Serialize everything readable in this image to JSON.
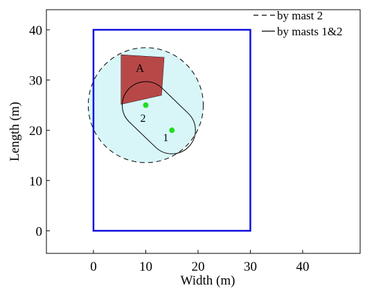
{
  "chart_data": {
    "type": "scatter",
    "xlabel": "Width (m)",
    "ylabel": "Length (m)",
    "xlim": [
      -9,
      51
    ],
    "ylim": [
      -4.5,
      44
    ],
    "xticks": [
      0,
      10,
      20,
      30,
      40
    ],
    "yticks": [
      0,
      10,
      20,
      30,
      40
    ],
    "grid": false,
    "legend_position": "top-right",
    "legend": [
      {
        "label": "by mast 2",
        "style": "dashed"
      },
      {
        "label": "by masts 1&2",
        "style": "solid"
      }
    ],
    "boundary": {
      "x": [
        0,
        30
      ],
      "y": [
        0,
        40
      ],
      "color": "#1010e0"
    },
    "coverage_mast2": {
      "center": [
        10,
        25
      ],
      "radius": 11
    },
    "coverage_masts12": {
      "p1": [
        15,
        20
      ],
      "p2": [
        10,
        25
      ],
      "radius": 4.5
    },
    "masts": [
      {
        "label": "1",
        "x": 15,
        "y": 20
      },
      {
        "label": "2",
        "x": 10,
        "y": 25
      }
    ],
    "region_a": {
      "label": "A",
      "polygon": [
        [
          5.3,
          35
        ],
        [
          13.5,
          34.5
        ],
        [
          13.0,
          27.0
        ],
        [
          5.3,
          25.2
        ]
      ],
      "color": "#e8201e"
    },
    "colors": {
      "boundary": "#1010e0",
      "coverage_fill": "#d8f6f8",
      "mast_point": "#22dd22",
      "region_a": "#e8201e",
      "region_a_overlap": "#b84848"
    }
  }
}
